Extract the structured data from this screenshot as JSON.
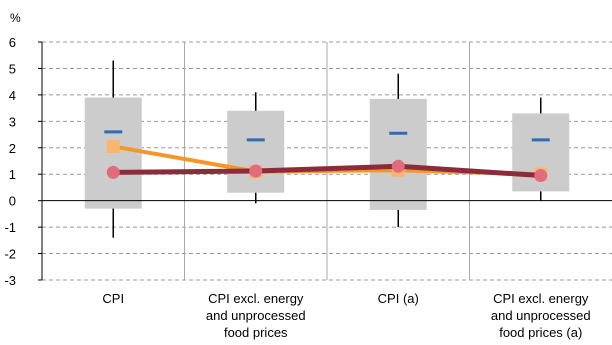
{
  "chart_data": {
    "type": "boxplot",
    "unit": "%",
    "ylim": [
      -3,
      6
    ],
    "y_ticks": [
      "6",
      "5",
      "4",
      "3",
      "2",
      "1",
      "0",
      "-1",
      "-2",
      "-3"
    ],
    "categories": [
      [
        "CPI"
      ],
      [
        "CPI excl. energy",
        "and unprocessed",
        "food prices"
      ],
      [
        "CPI (a)"
      ],
      [
        "CPI excl. energy",
        "and unprocessed",
        "food prices (a)"
      ]
    ],
    "grid": {
      "horizontal": "dashed",
      "vertical_separators": "dashed"
    },
    "boxes": [
      {
        "whisker_low": -1.4,
        "q1": -0.3,
        "q3": 3.9,
        "whisker_high": 5.3,
        "marker": 2.6
      },
      {
        "whisker_low": -0.1,
        "q1": 0.3,
        "q3": 3.4,
        "whisker_high": 4.1,
        "marker": 2.3
      },
      {
        "whisker_low": -1.0,
        "q1": -0.35,
        "q3": 3.85,
        "whisker_high": 4.8,
        "marker": 2.55
      },
      {
        "whisker_low": 0.0,
        "q1": 0.35,
        "q3": 3.3,
        "whisker_high": 3.9,
        "marker": 2.3
      }
    ],
    "series": [
      {
        "values": [
          2.05,
          1.1,
          1.15,
          1.0
        ],
        "color": "#f5962a",
        "marker": "square",
        "marker_color": "#f9b56b"
      },
      {
        "values": [
          1.07,
          1.12,
          1.3,
          0.95
        ],
        "color": "#8c2b3a",
        "marker": "circle",
        "marker_color": "#e06c7e"
      }
    ],
    "colors": {
      "box": "#cccccc",
      "whisker": "#000000",
      "box_marker": "#2f6db3",
      "grid": "#999999"
    }
  }
}
